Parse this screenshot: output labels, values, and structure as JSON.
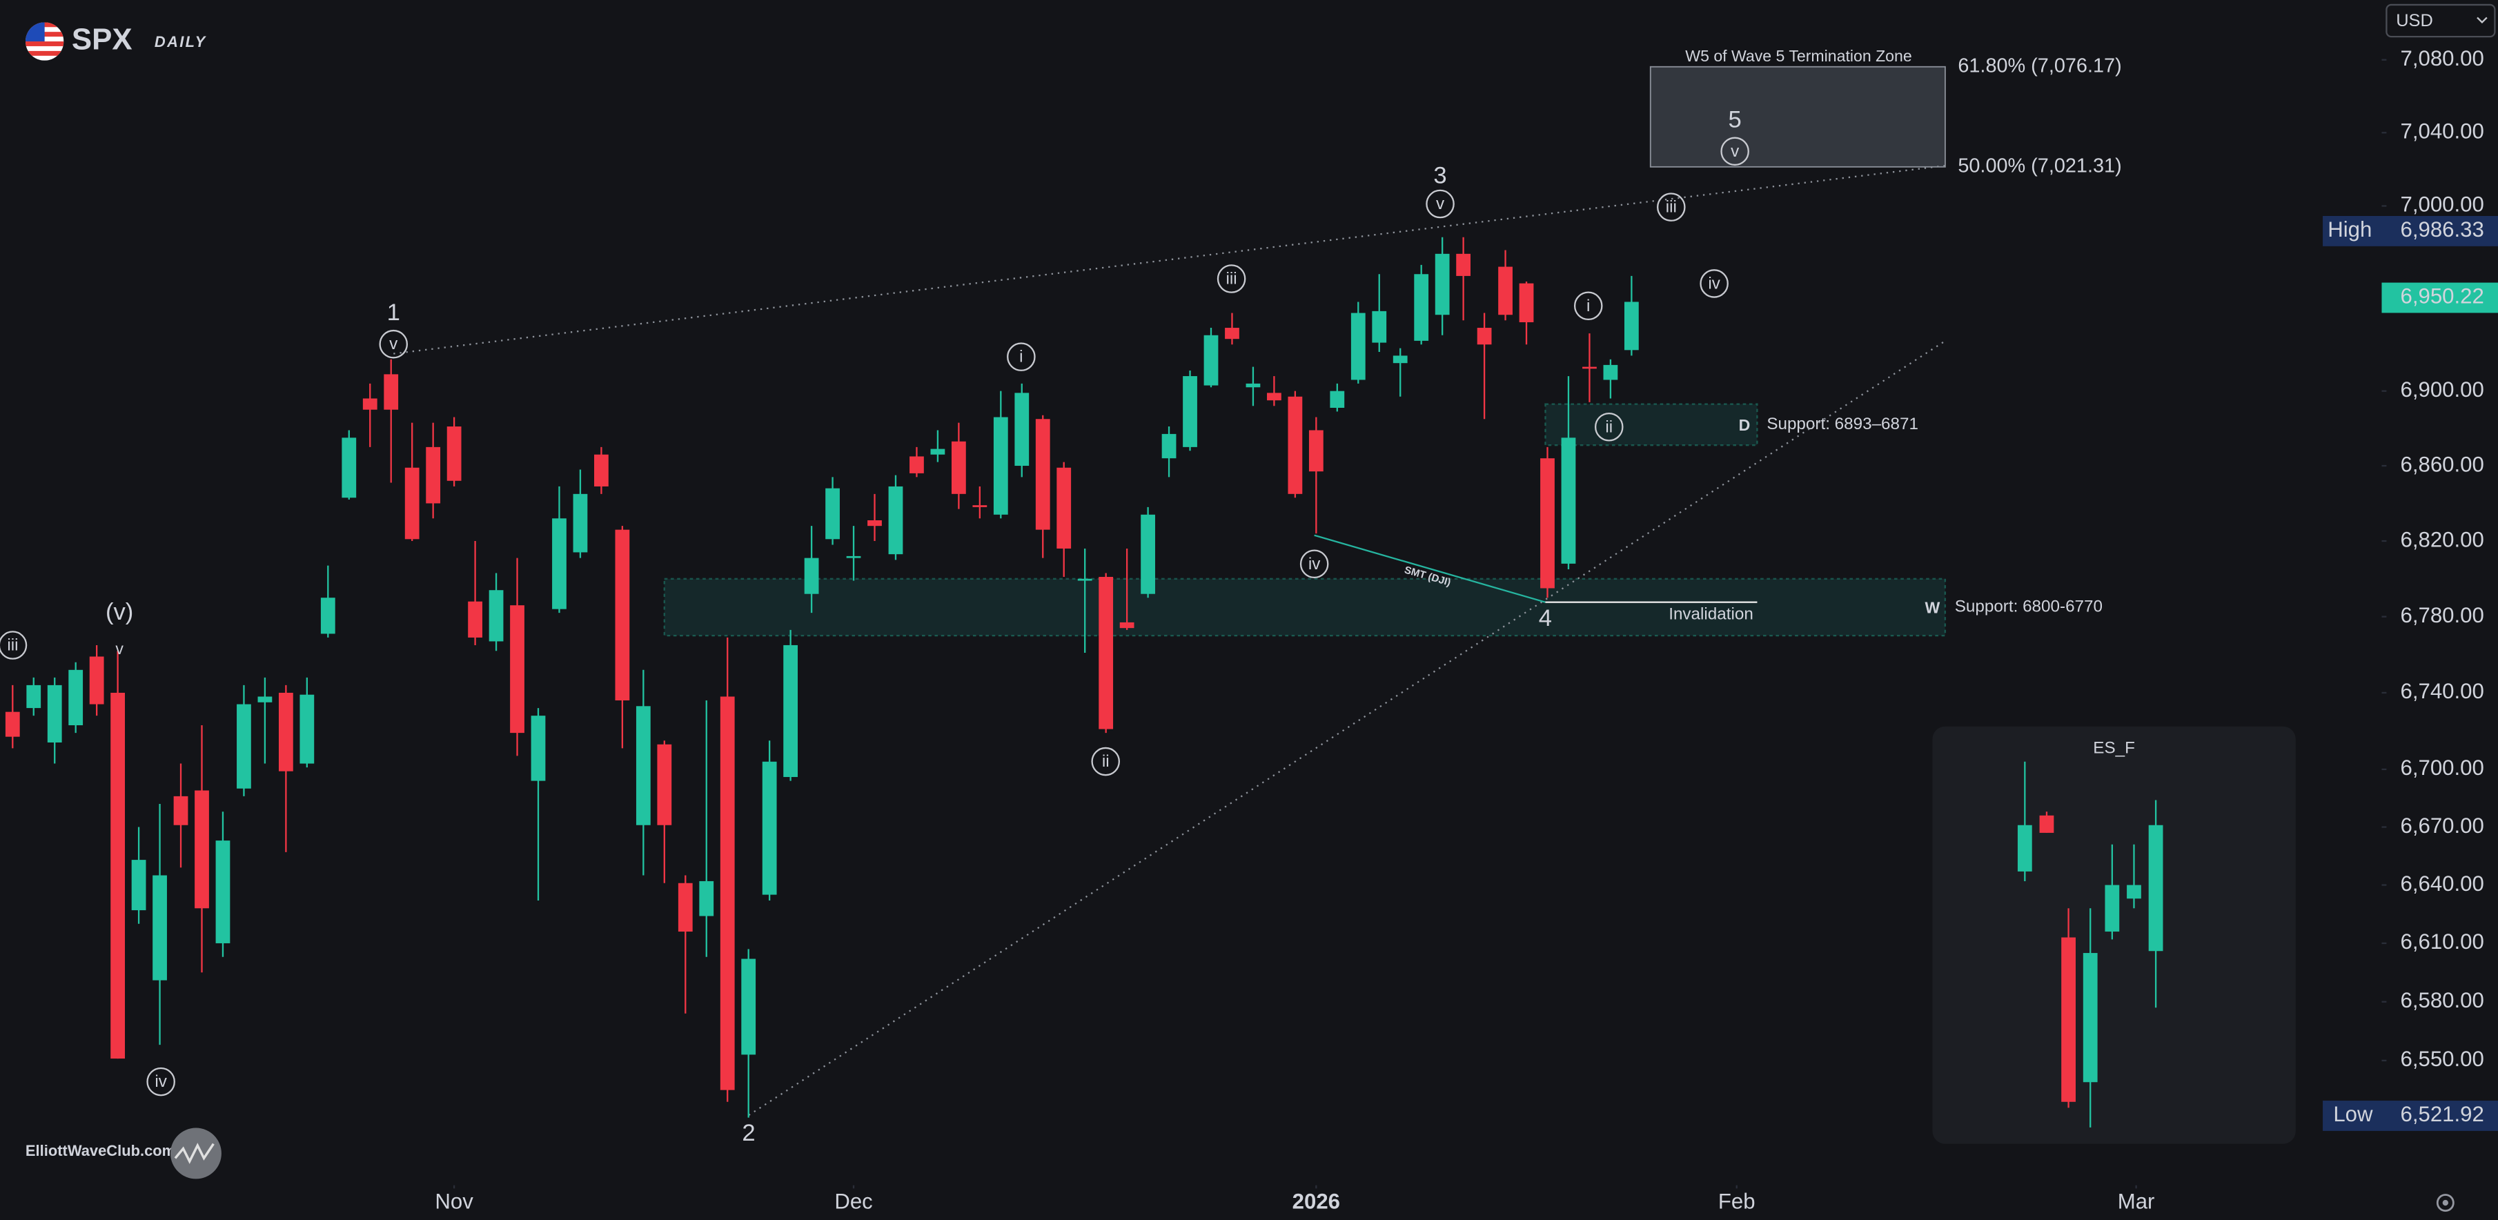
{
  "chart_data": {
    "type": "candlestick",
    "title": "SPX",
    "subtitle": "DAILY",
    "log_scale": true,
    "up_color": "#22c3a1",
    "down_color": "#f23645",
    "currency": "USD",
    "xlim": [
      -0.6,
      112.3
    ],
    "xticks": [
      {
        "value": 21,
        "label": "Nov"
      },
      {
        "value": 40,
        "label": "Dec"
      },
      {
        "value": 62,
        "label": "2026",
        "bold": true
      },
      {
        "value": 82,
        "label": "Feb"
      },
      {
        "value": 101,
        "label": "Mar"
      }
    ],
    "ylim": [
      6490,
      7113
    ],
    "yticks": [
      {
        "value": 6550,
        "label": "6,550.00"
      },
      {
        "value": 6580,
        "label": "6,580.00"
      },
      {
        "value": 6610,
        "label": "6,610.00"
      },
      {
        "value": 6640,
        "label": "6,640.00"
      },
      {
        "value": 6670,
        "label": "6,670.00"
      },
      {
        "value": 6700,
        "label": "6,700.00"
      },
      {
        "value": 6740,
        "label": "6,740.00"
      },
      {
        "value": 6780,
        "label": "6,780.00"
      },
      {
        "value": 6820,
        "label": "6,820.00"
      },
      {
        "value": 6860,
        "label": "6,860.00"
      },
      {
        "value": 6900,
        "label": "6,900.00"
      },
      {
        "value": 7000,
        "label": "7,000.00"
      },
      {
        "value": 7040,
        "label": "7,040.00"
      },
      {
        "value": 7080,
        "label": "7,080.00"
      }
    ],
    "open": [
      6730,
      6732,
      6714,
      6723,
      6759,
      6740,
      6627,
      6591,
      6686,
      6689,
      6610,
      6690,
      6735,
      6740,
      6703,
      6771,
      6843,
      6896,
      6909,
      6859,
      6870,
      6881,
      6788,
      6767,
      6786,
      6694,
      6784,
      6814,
      6866,
      6826,
      6671,
      6713,
      6641,
      6624,
      6738,
      6553,
      6635,
      6696,
      6792,
      6821,
      6811,
      6831,
      6813,
      6865,
      6866,
      6873,
      6839,
      6834,
      6860,
      6885,
      6859,
      6799,
      6801,
      6777,
      6792,
      6864,
      6870,
      6903,
      6934,
      6902,
      6899,
      6897,
      6879,
      6891,
      6906,
      6926,
      6915,
      6927,
      6941,
      6974,
      6934,
      6967,
      6958,
      6864,
      6808,
      6913,
      6906,
      6922
    ],
    "high": [
      6744,
      6748,
      6748,
      6756,
      6765,
      6762,
      6670,
      6682,
      6703,
      6723,
      6678,
      6744,
      6748,
      6744,
      6748,
      6807,
      6879,
      6904,
      6917,
      6883,
      6883,
      6886,
      6820,
      6803,
      6811,
      6732,
      6849,
      6858,
      6870,
      6828,
      6752,
      6715,
      6645,
      6736,
      6769,
      6607,
      6715,
      6773,
      6828,
      6854,
      6828,
      6845,
      6855,
      6870,
      6879,
      6883,
      6849,
      6900,
      6904,
      6887,
      6862,
      6816,
      6803,
      6816,
      6838,
      6881,
      6911,
      6934,
      6942,
      6913,
      6908,
      6900,
      6886,
      6904,
      6948,
      6963,
      6923,
      6968,
      6983,
      6983,
      6942,
      6976,
      6959,
      6870,
      6908,
      6931,
      6917,
      6962
    ],
    "low": [
      6711,
      6728,
      6703,
      6719,
      6728,
      6551,
      6620,
      6558,
      6649,
      6595,
      6603,
      6686,
      6703,
      6657,
      6701,
      6769,
      6842,
      6870,
      6851,
      6820,
      6832,
      6849,
      6765,
      6762,
      6707,
      6632,
      6782,
      6811,
      6845,
      6711,
      6645,
      6641,
      6574,
      6603,
      6529,
      6521,
      6632,
      6694,
      6782,
      6818,
      6799,
      6820,
      6810,
      6854,
      6862,
      6837,
      6832,
      6832,
      6854,
      6811,
      6801,
      6761,
      6719,
      6773,
      6790,
      6854,
      6868,
      6902,
      6925,
      6892,
      6892,
      6843,
      6824,
      6889,
      6904,
      6921,
      6897,
      6925,
      6930,
      6938,
      6885,
      6938,
      6925,
      6790,
      6805,
      6894,
      6896,
      6919
    ],
    "close": [
      6717,
      6744,
      6744,
      6752,
      6734,
      6551,
      6653,
      6645,
      6671,
      6628,
      6663,
      6734,
      6738,
      6699,
      6739,
      6790,
      6875,
      6890,
      6890,
      6821,
      6840,
      6852,
      6769,
      6794,
      6719,
      6728,
      6832,
      6845,
      6849,
      6736,
      6733,
      6671,
      6616,
      6642,
      6535,
      6602,
      6704,
      6765,
      6811,
      6848,
      6812,
      6828,
      6849,
      6856,
      6869,
      6845,
      6838,
      6886,
      6899,
      6826,
      6816,
      6800,
      6721,
      6774,
      6834,
      6877,
      6908,
      6930,
      6928,
      6904,
      6895,
      6845,
      6857,
      6900,
      6942,
      6943,
      6919,
      6963,
      6974,
      6962,
      6925,
      6941,
      6937,
      6795,
      6875,
      6912,
      6914,
      6948
    ],
    "last_price": {
      "value": 6950.22,
      "label": "6,950.22"
    },
    "high_label": "High",
    "high_value": {
      "value": 6986.33,
      "label": "6,986.33"
    },
    "low_label": "Low",
    "low_value": {
      "value": 6521.92,
      "label": "6,521.92"
    },
    "zones": [
      {
        "tag": "D",
        "label": "Support: 6893–6871",
        "high": 6893,
        "low": 6871
      },
      {
        "tag": "W",
        "label": "Support: 6800-6770",
        "high": 6800,
        "low": 6770
      }
    ],
    "termination_zone": {
      "title": "W5 of Wave 5 Termination Zone",
      "levels": [
        {
          "value": 7076.17,
          "label": "61.80% (7,076.17)"
        },
        {
          "value": 7021.31,
          "label": "50.00% (7,021.31)"
        }
      ]
    },
    "wave_labels": [
      "iii",
      "(v)",
      "v",
      "iv",
      "1",
      "v",
      "i",
      "2",
      "ii",
      "iii",
      "iv",
      "3",
      "v",
      "4",
      "i",
      "ii",
      "iii",
      "iv",
      "5",
      "v"
    ],
    "smt_note": "SMT (DJI)",
    "invalidation_note": "Invalidation",
    "inset": {
      "title": "ES_F",
      "open": [
        6647,
        6676,
        6613,
        6539,
        6616,
        6633,
        6606
      ],
      "high": [
        6704,
        6678,
        6628,
        6628,
        6661,
        6661,
        6684
      ],
      "low": [
        6642,
        6667,
        6526,
        6516,
        6612,
        6628,
        6577
      ],
      "close": [
        6671,
        6667,
        6529,
        6605,
        6640,
        6640,
        6671
      ]
    },
    "watermark": "ElliottWaveClub.com"
  }
}
